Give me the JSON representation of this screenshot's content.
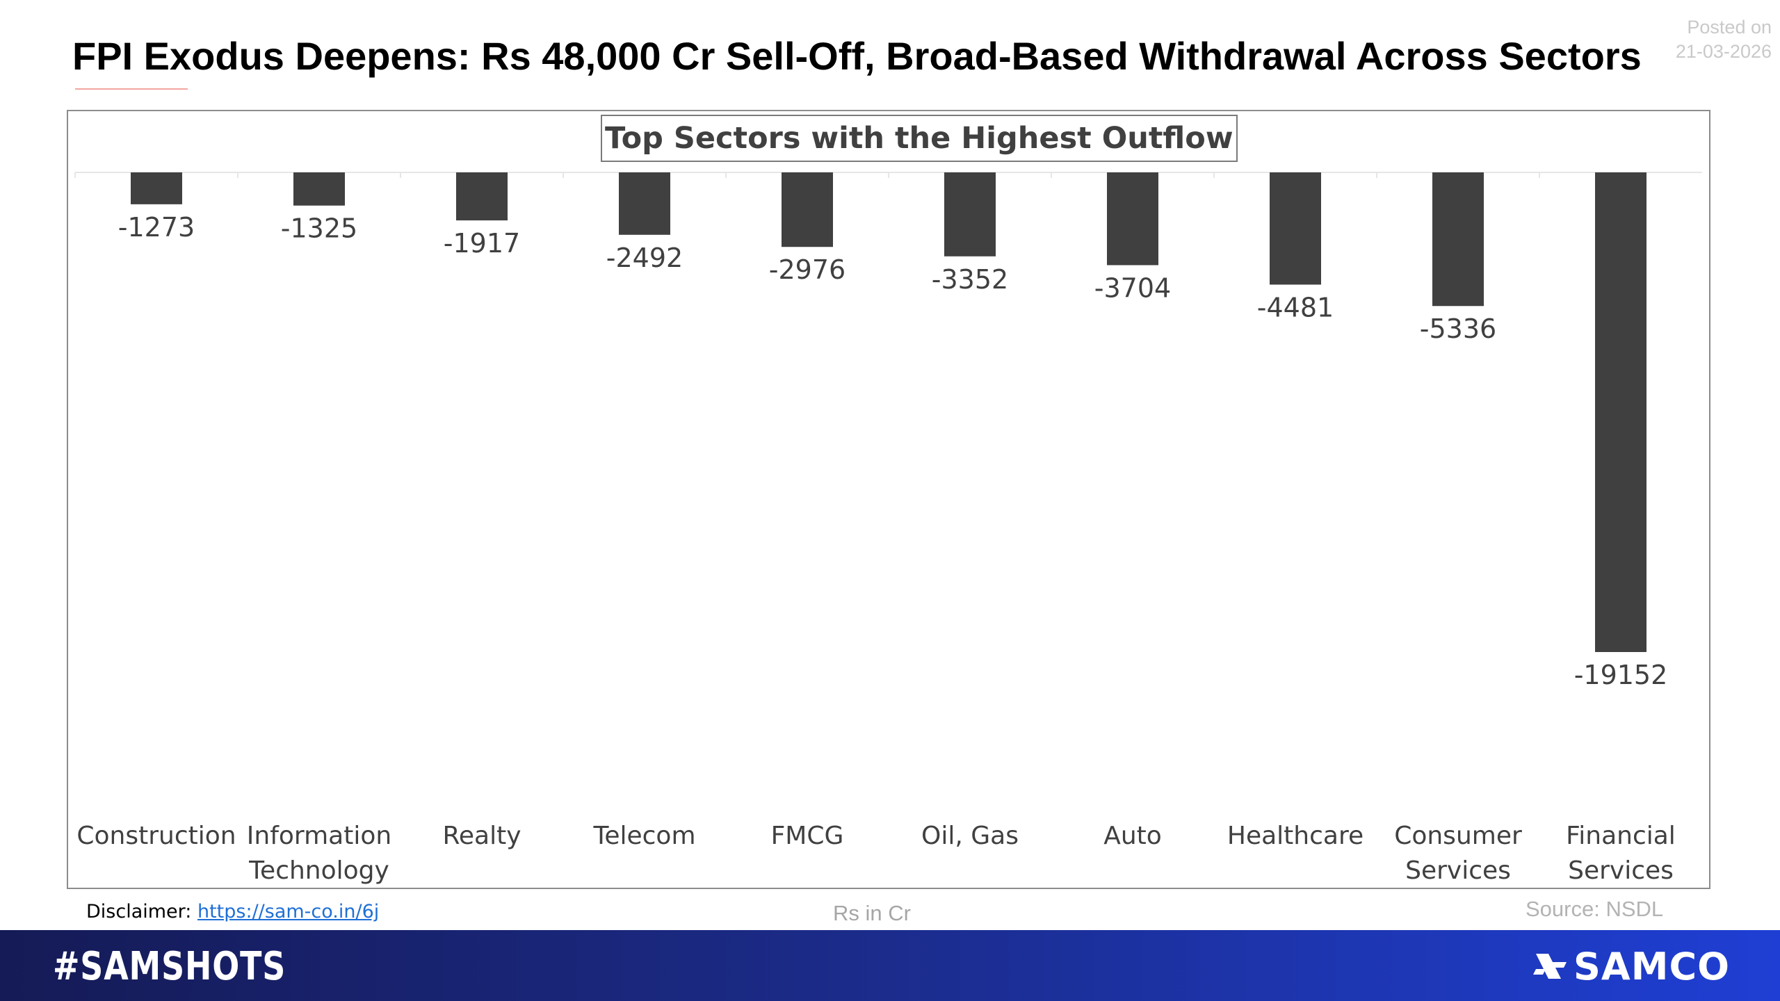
{
  "header": {
    "title": "FPI Exodus Deepens: Rs 48,000 Cr Sell-Off, Broad-Based Withdrawal Across Sectors",
    "posted_label": "Posted on",
    "posted_date": "21-03-2026"
  },
  "chart_data": {
    "type": "bar",
    "title": "Top Sectors with the Highest Outflow",
    "categories": [
      [
        "Construction"
      ],
      [
        "Information",
        "Technology"
      ],
      [
        "Realty"
      ],
      [
        "Telecom"
      ],
      [
        "FMCG"
      ],
      [
        "Oil, Gas"
      ],
      [
        "Auto"
      ],
      [
        "Healthcare"
      ],
      [
        "Consumer",
        "Services"
      ],
      [
        "Financial",
        "Services"
      ]
    ],
    "values": [
      -1273,
      -1325,
      -1917,
      -2492,
      -2976,
      -3352,
      -3704,
      -4481,
      -5336,
      -19152
    ],
    "data_labels": [
      "-1273",
      "-1325",
      "-1917",
      "-2492",
      "-2976",
      "-3352",
      "-3704",
      "-4481",
      "-5336",
      "-19152"
    ],
    "ylim": [
      -19152,
      0
    ],
    "bar_color": "#404040",
    "grid": false,
    "legend": "none"
  },
  "footer": {
    "disclaimer_label": "Disclaimer:",
    "disclaimer_link": "https://sam-co.in/6j",
    "units": "Rs in Cr",
    "source": "Source: NSDL"
  },
  "banner": {
    "hashtag": "#SAMSHOTS",
    "brand": "SAMCO",
    "brand_icon": "samco-logo-icon"
  },
  "colors": {
    "banner_start": "#151b56",
    "banner_end": "#1f3fd4",
    "bar": "#404040",
    "link": "#1f6fd6"
  }
}
